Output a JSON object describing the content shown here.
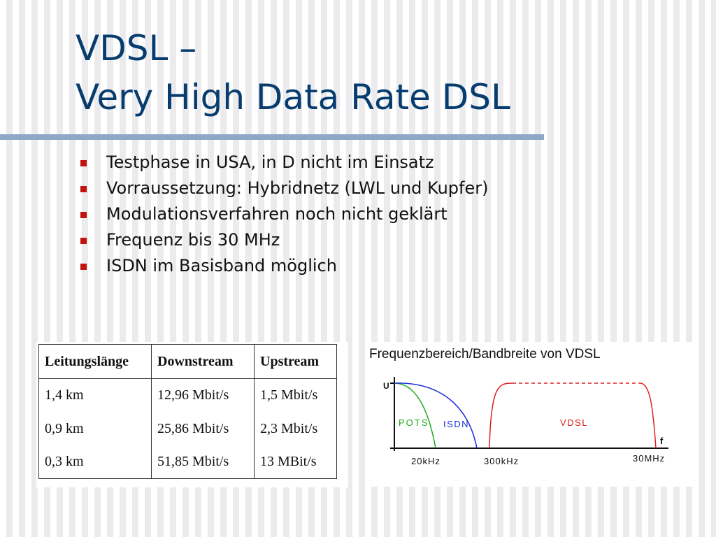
{
  "title": {
    "line1": "VDSL –",
    "line2": "Very High Data Rate DSL"
  },
  "bullets": [
    "Testphase in USA, in D nicht im Einsatz",
    "Vorraussetzung: Hybridnetz (LWL und Kupfer)",
    "Modulationsverfahren noch nicht geklärt",
    "Frequenz bis 30 MHz",
    "ISDN im Basisband möglich"
  ],
  "table": {
    "headers": [
      "Leitungslänge",
      "Downstream",
      "Upstream"
    ],
    "rows": [
      [
        "1,4 km",
        "12,96 Mbit/s",
        "1,5 Mbit/s"
      ],
      [
        "0,9 km",
        "25,86 Mbit/s",
        "2,3 Mbit/s"
      ],
      [
        "0,3 km",
        "51,85 Mbit/s",
        "13 MBit/s"
      ]
    ]
  },
  "chart_data": {
    "type": "diagram",
    "title": "Frequenzbereich/Bandbreite von VDSL",
    "ylabel": "U",
    "xlabel": "f",
    "ticks": [
      "20kHz",
      "300kHz",
      "30MHz"
    ],
    "bands": [
      {
        "name": "POTS",
        "color": "#1daa1d"
      },
      {
        "name": "ISDN",
        "color": "#1e2fd6"
      },
      {
        "name": "VDSL",
        "color": "#e02020"
      }
    ]
  }
}
